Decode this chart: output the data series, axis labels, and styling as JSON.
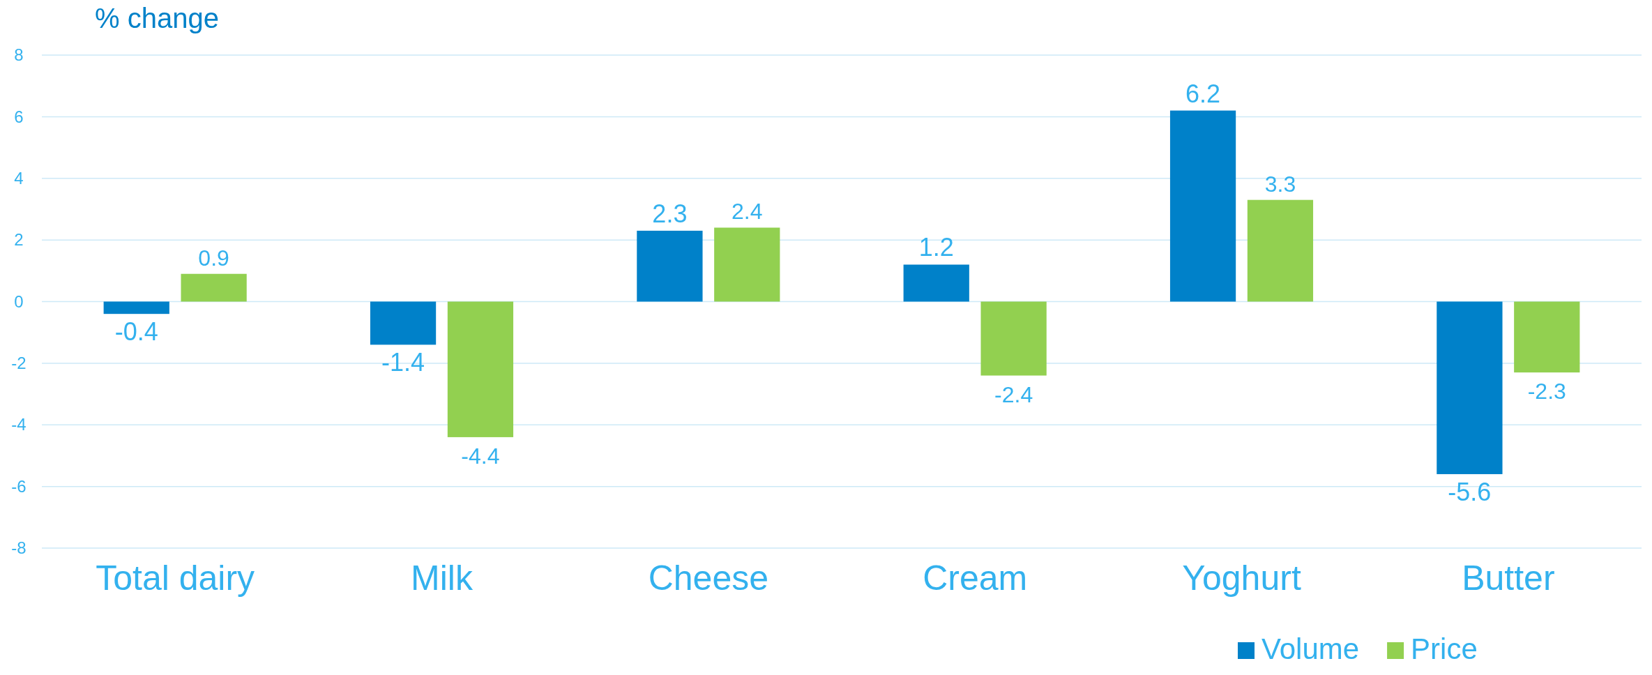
{
  "chart_data": {
    "type": "bar",
    "ylabel": "% change",
    "categories": [
      "Total dairy",
      "Milk",
      "Cheese",
      "Cream",
      "Yoghurt",
      "Butter"
    ],
    "series": [
      {
        "name": "Volume",
        "color": "#0081c9",
        "values": [
          -0.4,
          -1.4,
          2.3,
          1.2,
          6.2,
          -5.6
        ]
      },
      {
        "name": "Price",
        "color": "#92d050",
        "values": [
          0.9,
          -4.4,
          2.4,
          -2.4,
          3.3,
          -2.3
        ]
      }
    ],
    "ylim": [
      -8,
      8
    ],
    "yticks": [
      -8,
      -6,
      -4,
      -2,
      0,
      2,
      4,
      6,
      8
    ],
    "grid": "y",
    "legend": "bottom right",
    "data_labels": true
  }
}
